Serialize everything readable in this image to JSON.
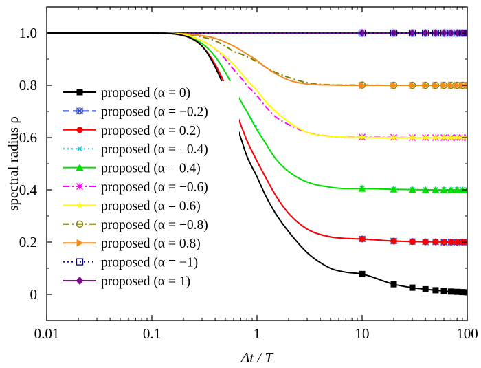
{
  "chart_data": {
    "type": "line",
    "title": "",
    "xlabel": "Δt / T",
    "ylabel": "spectral radius ρ",
    "xscale": "log",
    "xlim": [
      0.01,
      100
    ],
    "ylim": [
      -0.1,
      1.1
    ],
    "grid": false,
    "legend_position": "left",
    "xticks": [
      {
        "value": 0.01,
        "label": "0.01"
      },
      {
        "value": 0.1,
        "label": "0.1"
      },
      {
        "value": 1,
        "label": "1"
      },
      {
        "value": 10,
        "label": "10"
      },
      {
        "value": 100,
        "label": "100"
      }
    ],
    "yticks": [
      {
        "value": 0,
        "label": "0"
      },
      {
        "value": 0.2,
        "label": "0.2"
      },
      {
        "value": 0.4,
        "label": "0.4"
      },
      {
        "value": 0.6,
        "label": "0.6"
      },
      {
        "value": 0.8,
        "label": "0.8"
      },
      {
        "value": 1.0,
        "label": "1.0"
      }
    ],
    "x": [
      0.01,
      0.1,
      0.2,
      0.3,
      0.4,
      0.5,
      0.6,
      0.7,
      0.8,
      1.0,
      1.2,
      1.5,
      2,
      3,
      5,
      7,
      10,
      20,
      30,
      40,
      50,
      60,
      70,
      80,
      90,
      100
    ],
    "marker_x": [
      10,
      20,
      30,
      40,
      50,
      60,
      70,
      80,
      90,
      100
    ],
    "series": [
      {
        "name": "proposed (α = 0)",
        "color": "#000000",
        "dash": "solid",
        "marker": "square",
        "values": [
          1.0,
          1.0,
          0.99,
          0.95,
          0.87,
          0.78,
          0.68,
          0.6,
          0.53,
          0.45,
          0.38,
          0.31,
          0.24,
          0.16,
          0.1,
          0.085,
          0.078,
          0.039,
          0.026,
          0.02,
          0.016,
          0.013,
          0.011,
          0.01,
          0.009,
          0.008
        ]
      },
      {
        "name": "proposed (α = −0.2)",
        "color": "#1f3fe0",
        "dash": "dash",
        "marker": "x-circle",
        "values": [
          1.0,
          1.0,
          0.99,
          0.95,
          0.88,
          0.8,
          0.72,
          0.65,
          0.59,
          0.51,
          0.45,
          0.38,
          0.31,
          0.25,
          0.22,
          0.214,
          0.212,
          0.204,
          0.202,
          0.201,
          0.201,
          0.2,
          0.2,
          0.2,
          0.2,
          0.2
        ]
      },
      {
        "name": "proposed (α = 0.2)",
        "color": "#ff0000",
        "dash": "solid",
        "marker": "circle",
        "values": [
          1.0,
          1.0,
          0.99,
          0.95,
          0.88,
          0.8,
          0.72,
          0.65,
          0.59,
          0.51,
          0.45,
          0.38,
          0.31,
          0.25,
          0.22,
          0.214,
          0.212,
          0.204,
          0.202,
          0.201,
          0.201,
          0.2,
          0.2,
          0.2,
          0.2,
          0.2
        ]
      },
      {
        "name": "proposed (α = −0.4)",
        "color": "#22c8d8",
        "dash": "dot",
        "marker": "asterisk",
        "values": [
          1.0,
          1.0,
          0.99,
          0.96,
          0.91,
          0.85,
          0.79,
          0.74,
          0.7,
          0.64,
          0.58,
          0.52,
          0.47,
          0.43,
          0.41,
          0.405,
          0.405,
          0.402,
          0.401,
          0.4,
          0.4,
          0.4,
          0.4,
          0.4,
          0.4,
          0.4
        ]
      },
      {
        "name": "proposed (α = 0.4)",
        "color": "#00e000",
        "dash": "solid",
        "marker": "triangle",
        "values": [
          1.0,
          1.0,
          0.99,
          0.96,
          0.91,
          0.85,
          0.79,
          0.74,
          0.7,
          0.63,
          0.58,
          0.52,
          0.47,
          0.43,
          0.41,
          0.405,
          0.405,
          0.402,
          0.401,
          0.4,
          0.4,
          0.4,
          0.4,
          0.4,
          0.4,
          0.4
        ]
      },
      {
        "name": "proposed (α = −0.6)",
        "color": "#ff00ff",
        "dash": "dashdot",
        "marker": "xstar",
        "values": [
          1.0,
          1.0,
          0.995,
          0.97,
          0.94,
          0.9,
          0.86,
          0.83,
          0.8,
          0.76,
          0.72,
          0.68,
          0.65,
          0.62,
          0.605,
          0.602,
          0.602,
          0.601,
          0.6,
          0.6,
          0.6,
          0.6,
          0.6,
          0.6,
          0.6,
          0.6
        ]
      },
      {
        "name": "proposed (α = 0.6)",
        "color": "#ffff00",
        "dash": "solid",
        "marker": "star",
        "values": [
          1.0,
          1.0,
          0.995,
          0.97,
          0.94,
          0.91,
          0.88,
          0.85,
          0.82,
          0.78,
          0.74,
          0.7,
          0.66,
          0.62,
          0.605,
          0.602,
          0.601,
          0.6,
          0.6,
          0.6,
          0.6,
          0.6,
          0.6,
          0.6,
          0.6,
          0.6
        ]
      },
      {
        "name": "proposed (α = −0.8)",
        "color": "#7f7f00",
        "dash": "dashdot",
        "marker": "circle-open",
        "values": [
          1.0,
          1.0,
          0.997,
          0.985,
          0.97,
          0.95,
          0.93,
          0.92,
          0.91,
          0.89,
          0.87,
          0.85,
          0.83,
          0.81,
          0.802,
          0.801,
          0.801,
          0.8,
          0.8,
          0.8,
          0.8,
          0.8,
          0.8,
          0.8,
          0.8,
          0.8
        ]
      },
      {
        "name": "proposed (α = 0.8)",
        "color": "#f08c1e",
        "dash": "solid",
        "marker": "triangle-right",
        "values": [
          1.0,
          1.0,
          0.997,
          0.99,
          0.98,
          0.965,
          0.95,
          0.935,
          0.92,
          0.895,
          0.87,
          0.845,
          0.82,
          0.805,
          0.801,
          0.8,
          0.8,
          0.8,
          0.8,
          0.8,
          0.8,
          0.8,
          0.8,
          0.8,
          0.8,
          0.8
        ]
      },
      {
        "name": "proposed (α = −1)",
        "color": "#00008b",
        "dash": "dot",
        "marker": "square-open",
        "values": [
          1.0,
          1.0,
          1.0,
          1.0,
          1.0,
          1.0,
          1.0,
          1.0,
          1.0,
          1.0,
          1.0,
          1.0,
          1.0,
          1.0,
          1.0,
          1.0,
          1.0,
          1.0,
          1.0,
          1.0,
          1.0,
          1.0,
          1.0,
          1.0,
          1.0,
          1.0
        ]
      },
      {
        "name": "proposed (α = 1)",
        "color": "#7f0f8f",
        "dash": "solid",
        "marker": "diamond",
        "values": [
          1.0,
          1.0,
          1.0,
          1.0,
          1.0,
          1.0,
          1.0,
          1.0,
          1.0,
          1.0,
          1.0,
          1.0,
          1.0,
          1.0,
          1.0,
          1.0,
          1.0,
          1.0,
          1.0,
          1.0,
          1.0,
          1.0,
          1.0,
          1.0,
          1.0,
          1.0
        ]
      }
    ]
  }
}
